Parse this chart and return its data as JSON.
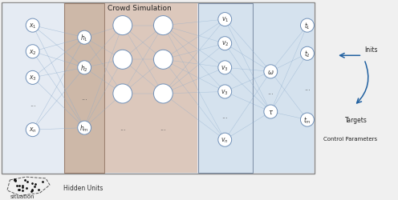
{
  "fig_width": 4.96,
  "fig_height": 2.51,
  "dpi": 100,
  "title": "Crowd Simulation",
  "node_edge_color": "#7090b8",
  "node_face_color": "#ffffff",
  "arrow_color": "#2060a0",
  "conn_color": "#8aabcc",
  "panel_outer_fc": "#e8edf5",
  "panel_outer_ec": "#888888",
  "panel_input_fc": "#e8edf5",
  "panel_h1_fc": "#cdb8a8",
  "panel_h1_ec": "#9a8070",
  "panel_deep_fc": "#dcc8bc",
  "panel_out1_fc": "#d5e2ee",
  "panel_out1_ec": "#8090a8",
  "panel_out2_fc": "#d5e2ee",
  "situation_text": "situation",
  "hidden_units_text": "Hidden Units",
  "inits_text": "Inits",
  "targets_text": "Targets",
  "control_text": "Control Parameters"
}
